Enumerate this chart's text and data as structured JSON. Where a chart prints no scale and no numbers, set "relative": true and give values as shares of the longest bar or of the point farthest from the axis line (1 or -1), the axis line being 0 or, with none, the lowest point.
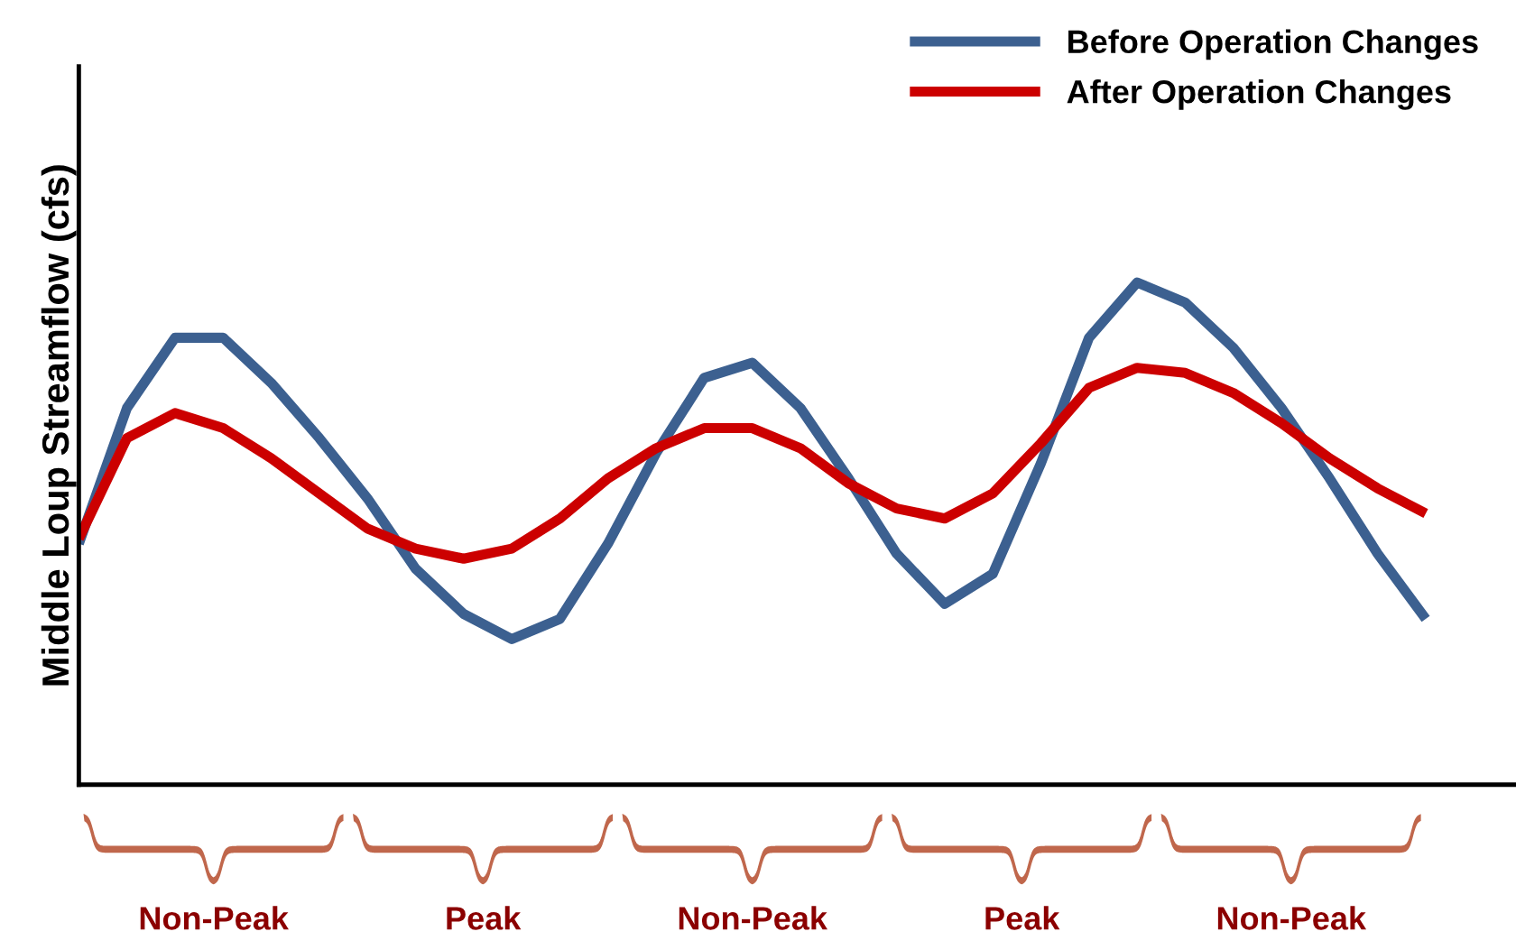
{
  "chart_data": {
    "type": "line",
    "relative": true,
    "ylabel": "Middle Loup Streamflow (cfs)",
    "categories": [
      null,
      null,
      null,
      null,
      null,
      null,
      null,
      null,
      null,
      null,
      null,
      null,
      null,
      null,
      null,
      null,
      null,
      null,
      null,
      null,
      null,
      null,
      null,
      null,
      null,
      null,
      null,
      null,
      null
    ],
    "series": [
      {
        "name": "Before Operation Changes",
        "color": "#3c6090",
        "values": [
          0.48,
          0.75,
          0.89,
          0.89,
          0.8,
          0.69,
          0.57,
          0.43,
          0.34,
          0.29,
          0.33,
          0.48,
          0.66,
          0.81,
          0.84,
          0.75,
          0.61,
          0.46,
          0.36,
          0.42,
          0.64,
          0.89,
          1.0,
          0.96,
          0.87,
          0.75,
          0.61,
          0.46,
          0.33
        ]
      },
      {
        "name": "After Operation Changes",
        "color": "#cc0000",
        "values": [
          0.49,
          0.69,
          0.74,
          0.71,
          0.65,
          0.58,
          0.51,
          0.47,
          0.45,
          0.47,
          0.53,
          0.61,
          0.67,
          0.71,
          0.71,
          0.67,
          0.6,
          0.55,
          0.53,
          0.58,
          0.68,
          0.79,
          0.83,
          0.82,
          0.78,
          0.72,
          0.65,
          0.59,
          0.54
        ]
      }
    ],
    "annotations": [
      "Non-Peak",
      "Peak",
      "Non-Peak",
      "Peak",
      "Non-Peak"
    ],
    "legend": "top right",
    "grid": false,
    "marker": "none",
    "line_style": "solid"
  }
}
